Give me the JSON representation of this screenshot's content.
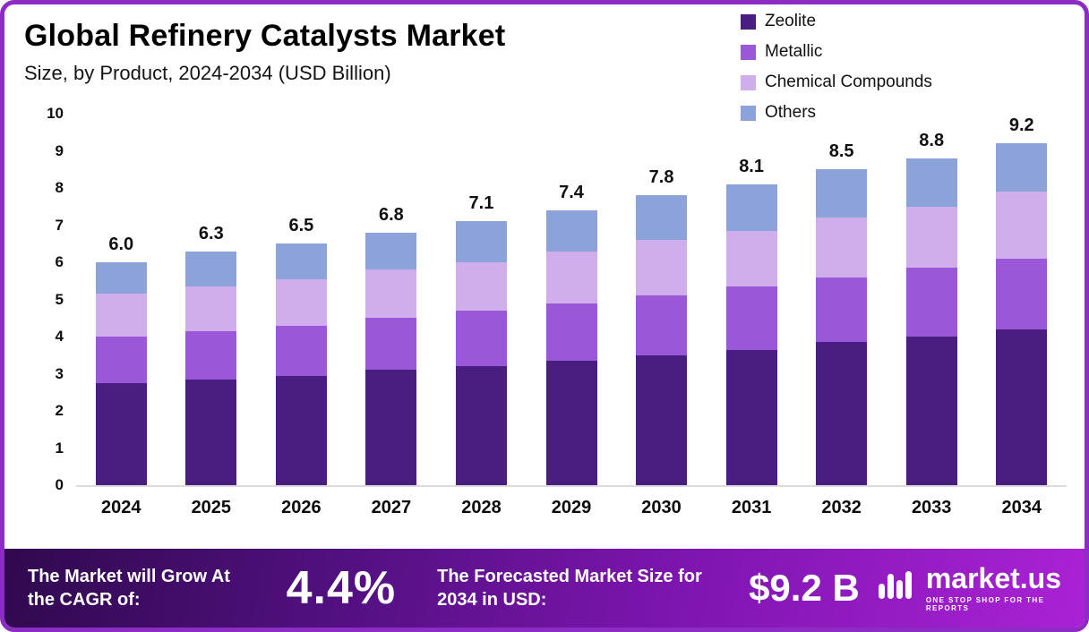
{
  "header": {
    "title": "Global Refinery Catalysts Market",
    "subtitle": "Size, by Product, 2024-2034 (USD Billion)"
  },
  "chart_data": {
    "type": "bar",
    "stacked": true,
    "title": "Global Refinery Catalysts Market Size, by Product, 2024-2034 (USD Billion)",
    "xlabel": "",
    "ylabel": "",
    "ylim": [
      0,
      10
    ],
    "yticks": [
      0,
      1,
      2,
      3,
      4,
      5,
      6,
      7,
      8,
      9,
      10
    ],
    "grid": false,
    "legend_position": "top-right",
    "categories": [
      "2024",
      "2025",
      "2026",
      "2027",
      "2028",
      "2029",
      "2030",
      "2031",
      "2032",
      "2033",
      "2034"
    ],
    "series": [
      {
        "name": "Zeolite",
        "color": "#4a1e80",
        "values": [
          2.75,
          2.85,
          2.95,
          3.1,
          3.2,
          3.35,
          3.5,
          3.65,
          3.85,
          4.0,
          4.2
        ]
      },
      {
        "name": "Metallic",
        "color": "#9a57d8",
        "values": [
          1.25,
          1.3,
          1.35,
          1.4,
          1.5,
          1.55,
          1.6,
          1.7,
          1.75,
          1.85,
          1.9
        ]
      },
      {
        "name": "Chemical Compounds",
        "color": "#d0aeec",
        "values": [
          1.15,
          1.2,
          1.25,
          1.3,
          1.3,
          1.4,
          1.5,
          1.5,
          1.6,
          1.65,
          1.8
        ]
      },
      {
        "name": "Others",
        "color": "#8ba3d8",
        "values": [
          0.85,
          0.95,
          0.95,
          1.0,
          1.1,
          1.1,
          1.2,
          1.25,
          1.3,
          1.3,
          1.3
        ]
      }
    ],
    "totals": [
      "6.0",
      "6.3",
      "6.5",
      "6.8",
      "7.1",
      "7.4",
      "7.8",
      "8.1",
      "8.5",
      "8.8",
      "9.2"
    ]
  },
  "footer": {
    "cagr_label": "The Market will Grow At the CAGR of:",
    "cagr_value": "4.4%",
    "forecast_label": "The Forecasted Market Size for 2034 in USD:",
    "forecast_value": "$9.2 B",
    "brand": "market.us",
    "brand_tagline": "ONE STOP SHOP FOR THE REPORTS"
  }
}
